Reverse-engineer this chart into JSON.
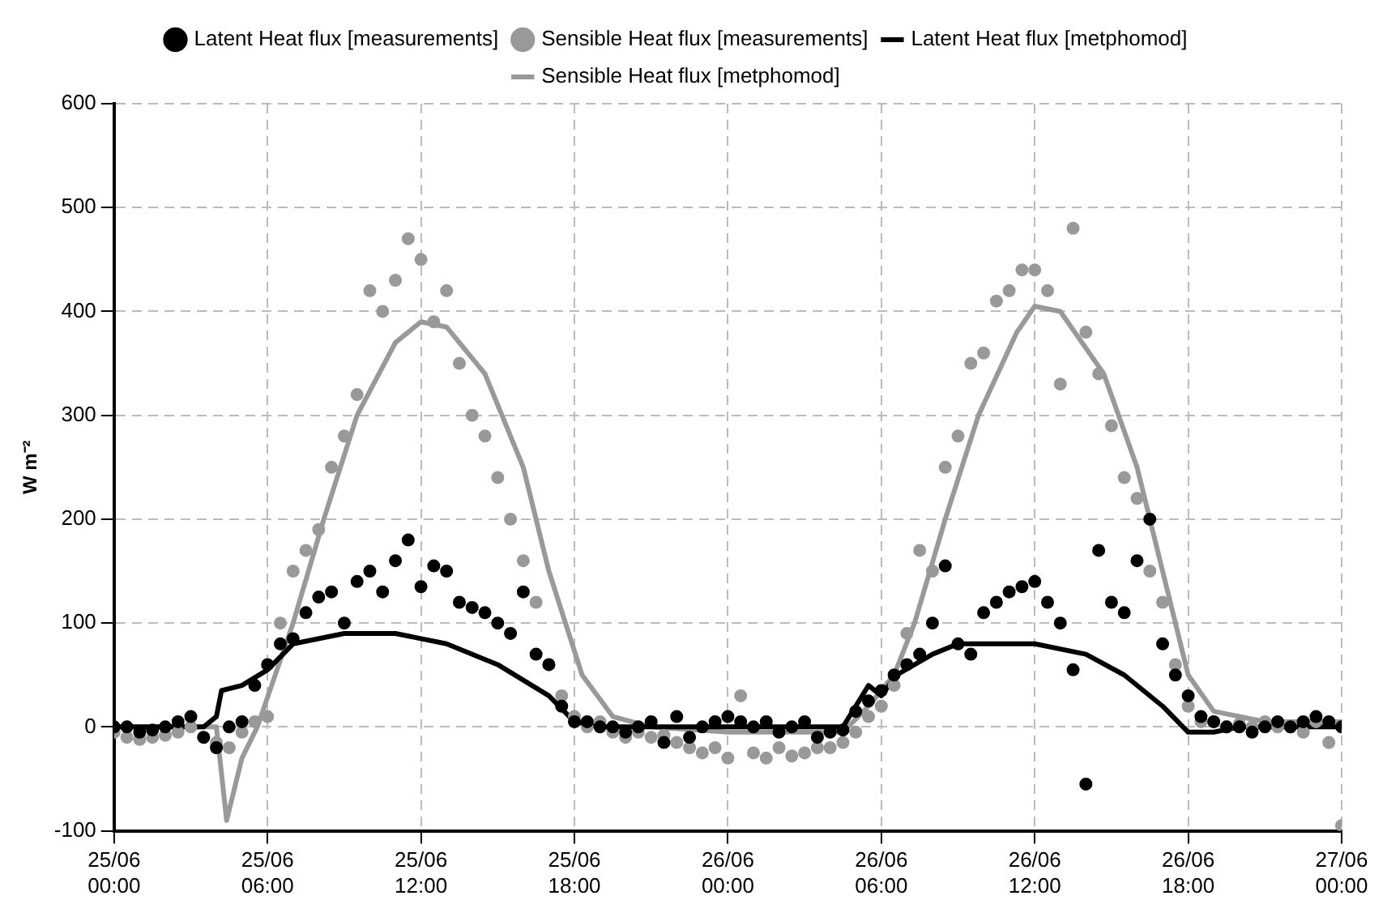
{
  "chart_data": {
    "type": "line",
    "ylabel": "W m⁻²",
    "xlim": [
      "--06-25T00:00",
      "--06-27T00:00"
    ],
    "xticks": [
      {
        "value": "--06-25T00:00",
        "label": "25/06\n00:00"
      },
      {
        "value": "--06-25T06:00",
        "label": "25/06\n06:00"
      },
      {
        "value": "--06-25T12:00",
        "label": "25/06\n12:00"
      },
      {
        "value": "--06-25T18:00",
        "label": "25/06\n18:00"
      },
      {
        "value": "--06-26T00:00",
        "label": "26/06\n00:00"
      },
      {
        "value": "--06-26T06:00",
        "label": "26/06\n06:00"
      },
      {
        "value": "--06-26T12:00",
        "label": "26/06\n12:00"
      },
      {
        "value": "--06-26T18:00",
        "label": "26/06\n18:00"
      },
      {
        "value": "--06-27T00:00",
        "label": "27/06\n00:00"
      }
    ],
    "ylim": [
      -100,
      600
    ],
    "yticks": [
      -100,
      0,
      100,
      200,
      300,
      400,
      500,
      600
    ],
    "grid": true,
    "legend": "top",
    "x": [
      "--06-25T00:00",
      "--06-25T00:30",
      "--06-25T01:00",
      "--06-25T01:30",
      "--06-25T02:00",
      "--06-25T02:30",
      "--06-25T03:00",
      "--06-25T03:30",
      "--06-25T04:00",
      "--06-25T04:30",
      "--06-25T05:00",
      "--06-25T05:30",
      "--06-25T06:00",
      "--06-25T06:30",
      "--06-25T07:00",
      "--06-25T07:30",
      "--06-25T08:00",
      "--06-25T08:30",
      "--06-25T09:00",
      "--06-25T09:30",
      "--06-25T10:00",
      "--06-25T10:30",
      "--06-25T11:00",
      "--06-25T11:30",
      "--06-25T12:00",
      "--06-25T12:30",
      "--06-25T13:00",
      "--06-25T13:30",
      "--06-25T14:00",
      "--06-25T14:30",
      "--06-25T15:00",
      "--06-25T15:30",
      "--06-25T16:00",
      "--06-25T16:30",
      "--06-25T17:00",
      "--06-25T17:30",
      "--06-25T18:00",
      "--06-25T18:30",
      "--06-25T19:00",
      "--06-25T19:30",
      "--06-25T20:00",
      "--06-25T20:30",
      "--06-25T21:00",
      "--06-25T21:30",
      "--06-25T22:00",
      "--06-25T22:30",
      "--06-25T23:00",
      "--06-25T23:30",
      "--06-26T00:00",
      "--06-26T00:30",
      "--06-26T01:00",
      "--06-26T01:30",
      "--06-26T02:00",
      "--06-26T02:30",
      "--06-26T03:00",
      "--06-26T03:30",
      "--06-26T04:00",
      "--06-26T04:30",
      "--06-26T05:00",
      "--06-26T05:30",
      "--06-26T06:00",
      "--06-26T06:30",
      "--06-26T07:00",
      "--06-26T07:30",
      "--06-26T08:00",
      "--06-26T08:30",
      "--06-26T09:00",
      "--06-26T09:30",
      "--06-26T10:00",
      "--06-26T10:30",
      "--06-26T11:00",
      "--06-26T11:30",
      "--06-26T12:00",
      "--06-26T12:30",
      "--06-26T13:00",
      "--06-26T13:30",
      "--06-26T14:00",
      "--06-26T14:30",
      "--06-26T15:00",
      "--06-26T15:30",
      "--06-26T16:00",
      "--06-26T16:30",
      "--06-26T17:00",
      "--06-26T17:30",
      "--06-26T18:00",
      "--06-26T18:30",
      "--06-26T19:00",
      "--06-26T19:30",
      "--06-26T20:00",
      "--06-26T20:30",
      "--06-26T21:00",
      "--06-26T21:30",
      "--06-26T22:00",
      "--06-26T22:30",
      "--06-26T23:00",
      "--06-26T23:30",
      "--06-27T00:00"
    ],
    "series": [
      {
        "name": "Sensible Heat flux [metphomod]",
        "type": "line",
        "marker": "none",
        "color": "#999999",
        "x": [
          "--06-25T00:00",
          "--06-25T04:00",
          "--06-25T04:24",
          "--06-25T05:00",
          "--06-25T05:36",
          "--06-25T07:00",
          "--06-25T08:12",
          "--06-25T09:30",
          "--06-25T11:00",
          "--06-25T12:00",
          "--06-25T13:00",
          "--06-25T14:30",
          "--06-25T16:00",
          "--06-25T17:00",
          "--06-25T18:18",
          "--06-25T19:30",
          "--06-25T21:00",
          "--06-26T00:00",
          "--06-26T04:30",
          "--06-26T05:30",
          "--06-26T06:30",
          "--06-26T07:18",
          "--06-26T08:30",
          "--06-26T09:48",
          "--06-26T11:18",
          "--06-26T12:00",
          "--06-26T13:00",
          "--06-26T14:42",
          "--06-26T16:00",
          "--06-26T17:00",
          "--06-26T18:00",
          "--06-26T19:00",
          "--06-26T21:00",
          "--06-27T00:00"
        ],
        "values": [
          0,
          0,
          -90,
          -30,
          0,
          100,
          200,
          300,
          370,
          390,
          385,
          340,
          250,
          150,
          50,
          10,
          0,
          -5,
          -5,
          20,
          50,
          100,
          200,
          300,
          380,
          405,
          400,
          340,
          250,
          150,
          50,
          15,
          5,
          5
        ]
      },
      {
        "name": "Latent Heat flux [metphomod]",
        "type": "line",
        "marker": "none",
        "color": "#000000",
        "x": [
          "--06-25T00:00",
          "--06-25T03:30",
          "--06-25T04:00",
          "--06-25T04:12",
          "--06-25T05:00",
          "--06-25T06:00",
          "--06-25T07:00",
          "--06-25T09:00",
          "--06-25T11:00",
          "--06-25T13:00",
          "--06-25T15:00",
          "--06-25T17:00",
          "--06-25T18:00",
          "--06-25T19:00",
          "--06-26T00:00",
          "--06-26T04:30",
          "--06-26T05:00",
          "--06-26T05:30",
          "--06-26T06:00",
          "--06-26T06:36",
          "--06-26T08:00",
          "--06-26T09:00",
          "--06-26T12:00",
          "--06-26T14:00",
          "--06-26T15:30",
          "--06-26T17:00",
          "--06-26T18:00",
          "--06-26T19:00",
          "--06-26T20:00",
          "--06-27T00:00"
        ],
        "values": [
          0,
          0,
          10,
          35,
          40,
          55,
          80,
          90,
          90,
          80,
          60,
          30,
          5,
          0,
          0,
          0,
          20,
          40,
          30,
          50,
          70,
          80,
          80,
          70,
          50,
          20,
          -5,
          -5,
          0,
          0
        ]
      },
      {
        "name": "Sensible Heat flux [measurements]",
        "type": "scatter",
        "marker": "circle",
        "color": "#999999",
        "values": [
          -5,
          -10,
          -12,
          -10,
          -8,
          -5,
          0,
          -10,
          -15,
          -20,
          -5,
          5,
          10,
          100,
          150,
          170,
          190,
          250,
          280,
          320,
          420,
          400,
          430,
          470,
          450,
          390,
          420,
          350,
          300,
          280,
          240,
          200,
          160,
          120,
          60,
          30,
          10,
          0,
          5,
          -5,
          -10,
          -5,
          -10,
          -8,
          -15,
          -20,
          -25,
          -20,
          -30,
          30,
          -25,
          -30,
          -20,
          -28,
          -25,
          -20,
          -20,
          -15,
          -5,
          10,
          20,
          40,
          90,
          170,
          150,
          250,
          280,
          350,
          360,
          410,
          420,
          440,
          440,
          420,
          330,
          480,
          380,
          340,
          290,
          240,
          220,
          150,
          120,
          60,
          20,
          5,
          5,
          0,
          3,
          0,
          5,
          0,
          0,
          -5,
          5,
          -15,
          -95
        ]
      },
      {
        "name": "Latent Heat flux [measurements]",
        "type": "scatter",
        "marker": "circle",
        "color": "#000000",
        "values": [
          0,
          0,
          -5,
          -3,
          0,
          5,
          10,
          -10,
          -20,
          0,
          5,
          40,
          60,
          80,
          85,
          110,
          125,
          130,
          100,
          140,
          150,
          130,
          160,
          180,
          135,
          155,
          150,
          120,
          115,
          110,
          100,
          90,
          130,
          70,
          60,
          20,
          5,
          5,
          0,
          0,
          -5,
          0,
          5,
          -15,
          10,
          -10,
          0,
          5,
          10,
          5,
          0,
          5,
          -5,
          0,
          5,
          -10,
          -5,
          -3,
          15,
          25,
          35,
          50,
          60,
          70,
          100,
          155,
          80,
          70,
          110,
          120,
          130,
          135,
          140,
          120,
          100,
          55,
          -55,
          170,
          120,
          110,
          160,
          200,
          80,
          50,
          30,
          10,
          5,
          0,
          0,
          -5,
          0,
          5,
          0,
          5,
          10,
          5,
          0
        ]
      }
    ]
  }
}
